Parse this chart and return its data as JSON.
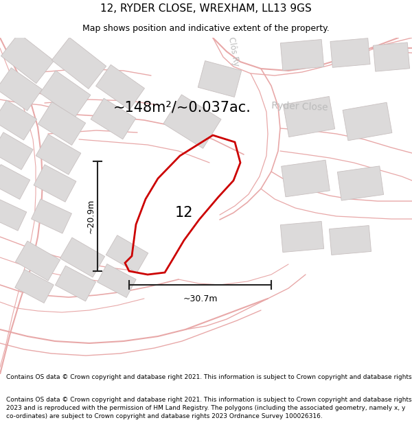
{
  "title": "12, RYDER CLOSE, WREXHAM, LL13 9GS",
  "subtitle": "Map shows position and indicative extent of the property.",
  "area_label": "~148m²/~0.037ac.",
  "street_label": "Ryder Close",
  "street_label2": "Clôs Ry",
  "plot_number": "12",
  "dim_height": "~20.9m",
  "dim_width": "~30.7m",
  "footer": "Contains OS data © Crown copyright and database right 2021. This information is subject to Crown copyright and database rights 2023 and is reproduced with the permission of HM Land Registry. The polygons (including the associated geometry, namely x, y co-ordinates) are subject to Crown copyright and database rights 2023 Ordnance Survey 100026316.",
  "map_bg": "#faf7f7",
  "road_color": "#e8a8a8",
  "building_color": "#dcdada",
  "building_edge": "#c8c0c0",
  "plot_color": "#cc0000",
  "dim_color": "#222222",
  "street_text_color": "#aaaaaa",
  "title_fontsize": 11,
  "subtitle_fontsize": 9,
  "area_fontsize": 15,
  "street_fontsize": 10,
  "plot_num_fontsize": 15,
  "footer_fontsize": 6.5,
  "road_lw": 1.3,
  "plot_lw": 2.0
}
